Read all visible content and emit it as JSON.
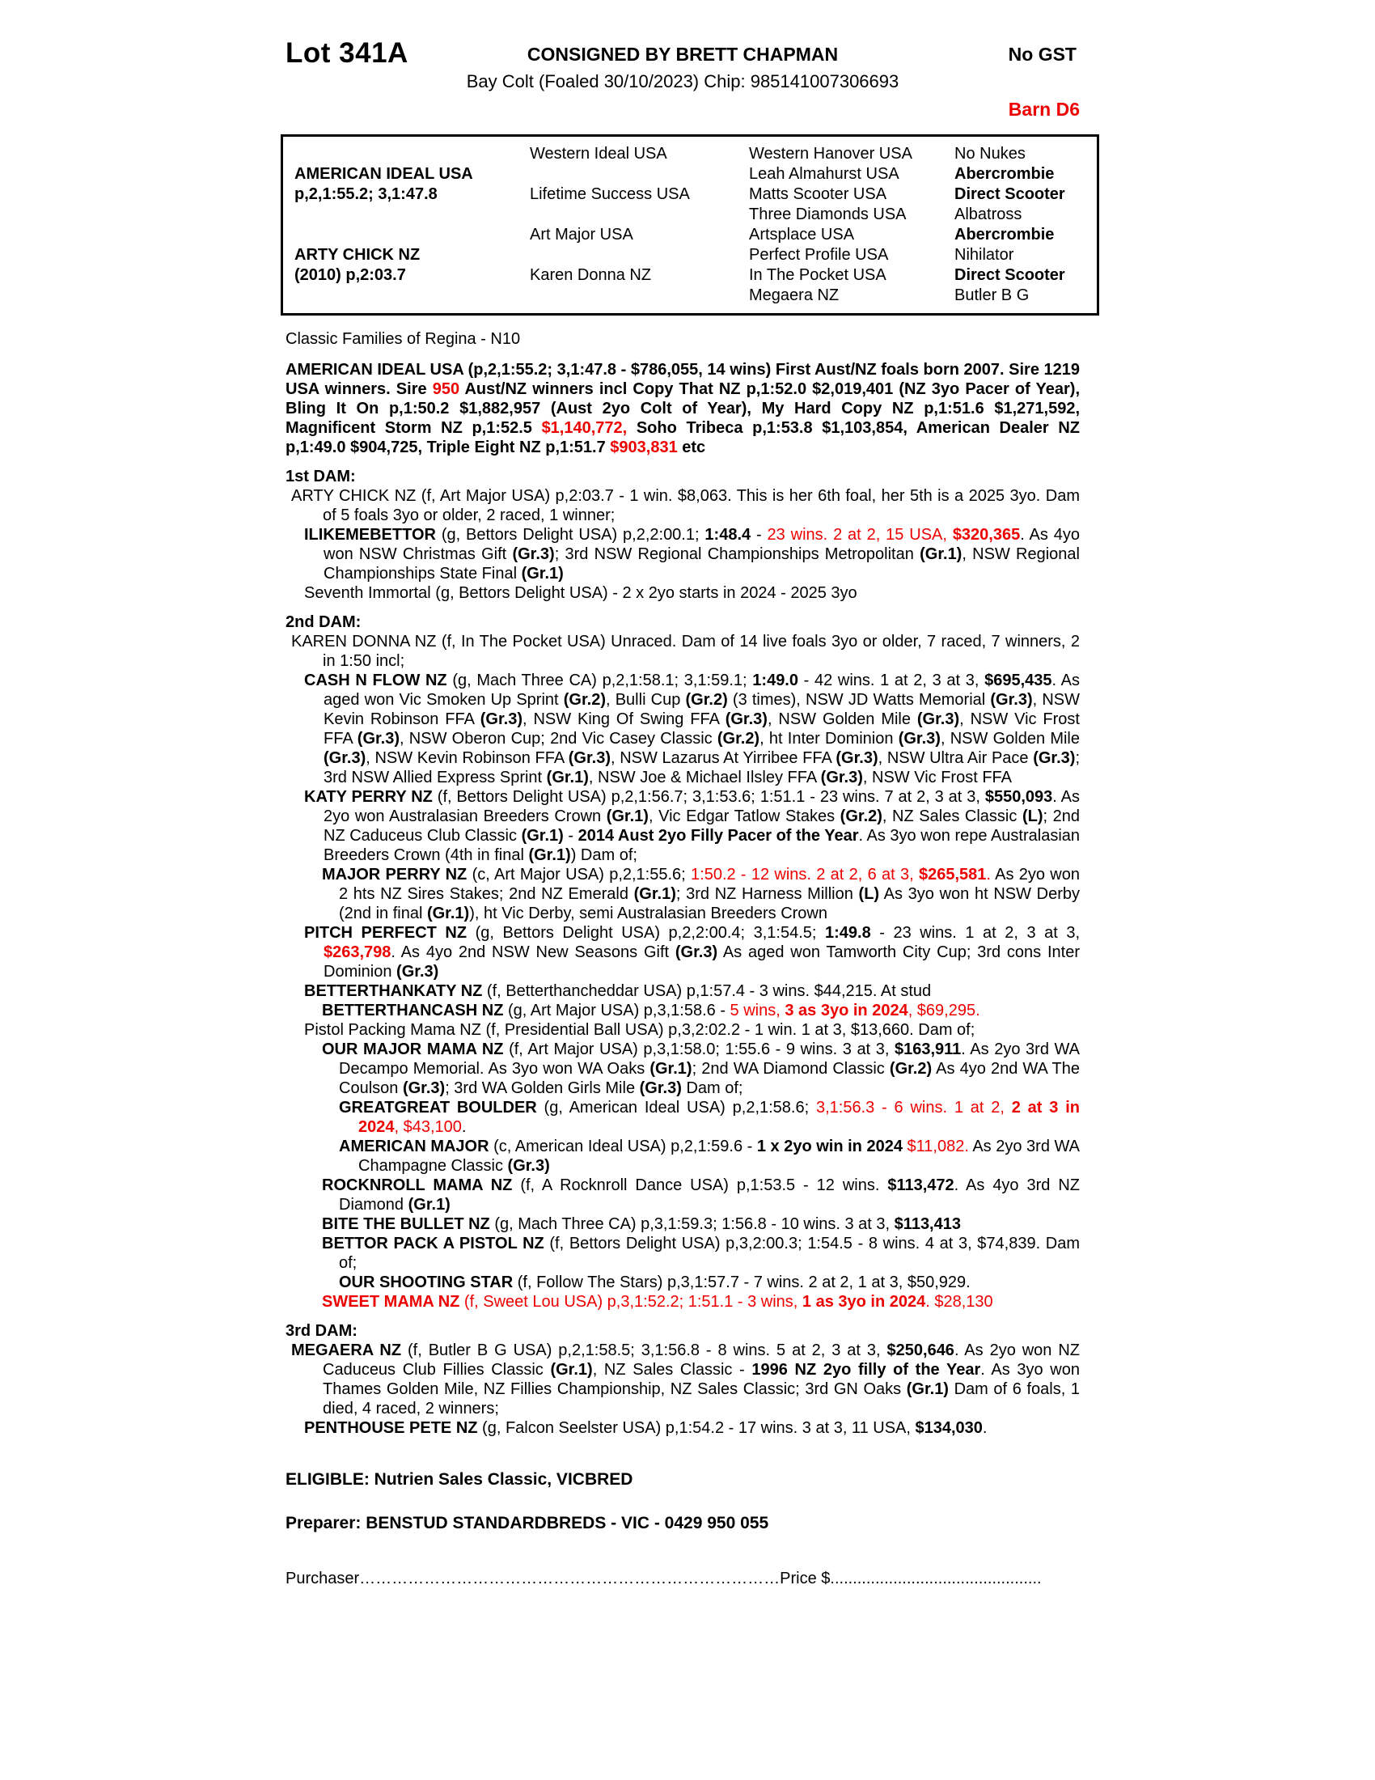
{
  "colors": {
    "red": "#ee0000",
    "black": "#000000"
  },
  "header": {
    "lot": "Lot 341A",
    "consigned": "CONSIGNED BY BRETT CHAPMAN",
    "no_gst": "No GST",
    "subtitle": "Bay Colt (Foaled 30/10/2023) Chip: 985141007306693",
    "barn": "Barn D6"
  },
  "pedigree_table": {
    "sire_dam": [
      {
        "name": "AMERICAN IDEAL USA",
        "record": "p,2,1:55.2; 3,1:47.8"
      },
      {
        "name": "ARTY CHICK NZ",
        "record": "(2010) p,2:03.7"
      }
    ],
    "grandparents": [
      "Western Ideal USA",
      "Lifetime Success USA",
      "Art Major USA",
      "Karen Donna NZ"
    ],
    "great_grandparents": [
      "Western Hanover USA",
      "Leah Almahurst USA",
      "Matts Scooter USA",
      "Three Diamonds USA",
      "Artsplace USA",
      "Perfect Profile USA",
      "In The Pocket USA",
      "Megaera NZ"
    ],
    "gg_grandparents": [
      {
        "text": "No Nukes",
        "bold": false
      },
      {
        "text": "Abercrombie",
        "bold": true
      },
      {
        "text": "Direct Scooter",
        "bold": true
      },
      {
        "text": "Albatross",
        "bold": false
      },
      {
        "text": "Abercrombie",
        "bold": true
      },
      {
        "text": "Nihilator",
        "bold": false
      },
      {
        "text": "Direct Scooter",
        "bold": true
      },
      {
        "text": "Butler B G",
        "bold": false
      }
    ]
  },
  "body": [
    {
      "name": "family-line",
      "cls": "noj",
      "segments": [
        {
          "t": "Classic Families of Regina - N10",
          "s": ""
        }
      ]
    },
    {
      "name": "sire-summary",
      "cls": "mt14",
      "segments": [
        {
          "t": "AMERICAN IDEAL USA (p,2,1:55.2; 3,1:47.8 - $786,055, 14 wins) First Aust/NZ foals born 2007. Sire 1219 USA winners. Sire ",
          "s": "b"
        },
        {
          "t": "950",
          "s": "rb"
        },
        {
          "t": " Aust/NZ winners incl Copy That NZ p,1:52.0 $2,019,401 (NZ 3yo Pacer of Year), Bling It On p,1:50.2 $1,882,957 (Aust 2yo Colt of Year), My Hard Copy NZ p,1:51.6 $1,271,592, Magnificent Storm NZ p,1:52.5 ",
          "s": "b"
        },
        {
          "t": "$1,140,772,",
          "s": "rb"
        },
        {
          "t": " Soho Tribeca p,1:53.8 $1,103,854, American Dealer NZ p,1:49.0 $904,725, Triple Eight NZ p,1:51.7 ",
          "s": "b"
        },
        {
          "t": "$903,831",
          "s": "rb"
        },
        {
          "t": " etc",
          "s": "b"
        }
      ]
    },
    {
      "name": "heading-1st-dam",
      "cls": "heading mt12",
      "segments": [
        {
          "t": "1st DAM:",
          "s": "b"
        }
      ]
    },
    {
      "name": "entry-arty-chick",
      "cls": "dam",
      "segments": [
        {
          "t": "ARTY CHICK NZ (f, Art Major USA) p,2:03.7 - 1 win. $8,063. This is her 6th foal, her 5th is a 2025 3yo. Dam of 5 foals 3yo or older, 2 raced, 1 winner;",
          "s": ""
        }
      ]
    },
    {
      "name": "entry-ilikemebettor",
      "cls": "l1",
      "segments": [
        {
          "t": "ILIKEMEBETTOR",
          "s": "b"
        },
        {
          "t": " (g, Bettors Delight USA) p,2,2:00.1; ",
          "s": ""
        },
        {
          "t": "1:48.4",
          "s": "b"
        },
        {
          "t": " - ",
          "s": ""
        },
        {
          "t": "23 wins. 2 at 2, 15 USA, ",
          "s": "r"
        },
        {
          "t": "$320,365",
          "s": "rb"
        },
        {
          "t": ". As 4yo won NSW Christmas Gift ",
          "s": ""
        },
        {
          "t": "(Gr.3)",
          "s": "b"
        },
        {
          "t": "; 3rd NSW Regional Championships Metropolitan ",
          "s": ""
        },
        {
          "t": "(Gr.1)",
          "s": "b"
        },
        {
          "t": ", NSW Regional Championships State Final ",
          "s": ""
        },
        {
          "t": "(Gr.1)",
          "s": "b"
        }
      ]
    },
    {
      "name": "entry-seventh-immortal",
      "cls": "l1",
      "segments": [
        {
          "t": "Seventh Immortal (g, Bettors Delight USA) - 2 x 2yo starts in 2024 - 2025 3yo",
          "s": ""
        }
      ]
    },
    {
      "name": "heading-2nd-dam",
      "cls": "heading mt12",
      "segments": [
        {
          "t": "2nd DAM:",
          "s": "b"
        }
      ]
    },
    {
      "name": "entry-karen-donna",
      "cls": "dam",
      "segments": [
        {
          "t": "KAREN DONNA NZ (f, In The Pocket USA) Unraced. Dam of 14 live foals 3yo or older, 7 raced, 7 winners, 2 in 1:50 incl;",
          "s": ""
        }
      ]
    },
    {
      "name": "entry-cash-n-flow",
      "cls": "l1",
      "segments": [
        {
          "t": "CASH N FLOW NZ",
          "s": "b"
        },
        {
          "t": " (g, Mach Three CA) p,2,1:58.1; 3,1:59.1; ",
          "s": ""
        },
        {
          "t": "1:49.0",
          "s": "b"
        },
        {
          "t": " - 42 wins. 1 at 2, 3 at 3, ",
          "s": ""
        },
        {
          "t": "$695,435",
          "s": "b"
        },
        {
          "t": ". As aged won Vic Smoken Up Sprint ",
          "s": ""
        },
        {
          "t": "(Gr.2)",
          "s": "b"
        },
        {
          "t": ", Bulli Cup ",
          "s": ""
        },
        {
          "t": "(Gr.2)",
          "s": "b"
        },
        {
          "t": " (3 times), NSW JD Watts Memorial ",
          "s": ""
        },
        {
          "t": "(Gr.3)",
          "s": "b"
        },
        {
          "t": ", NSW Kevin Robinson FFA ",
          "s": ""
        },
        {
          "t": "(Gr.3)",
          "s": "b"
        },
        {
          "t": ", NSW King Of Swing FFA ",
          "s": ""
        },
        {
          "t": "(Gr.3)",
          "s": "b"
        },
        {
          "t": ", NSW Golden Mile ",
          "s": ""
        },
        {
          "t": "(Gr.3)",
          "s": "b"
        },
        {
          "t": ", NSW Vic Frost FFA ",
          "s": ""
        },
        {
          "t": "(Gr.3)",
          "s": "b"
        },
        {
          "t": ", NSW Oberon Cup; 2nd Vic Casey Classic ",
          "s": ""
        },
        {
          "t": "(Gr.2)",
          "s": "b"
        },
        {
          "t": ", ht Inter Dominion ",
          "s": ""
        },
        {
          "t": "(Gr.3)",
          "s": "b"
        },
        {
          "t": ", NSW Golden Mile ",
          "s": ""
        },
        {
          "t": "(Gr.3)",
          "s": "b"
        },
        {
          "t": ", NSW Kevin Robinson FFA ",
          "s": ""
        },
        {
          "t": "(Gr.3)",
          "s": "b"
        },
        {
          "t": ", NSW Lazarus At Yirribee FFA ",
          "s": ""
        },
        {
          "t": "(Gr.3)",
          "s": "b"
        },
        {
          "t": ", NSW Ultra Air Pace ",
          "s": ""
        },
        {
          "t": "(Gr.3)",
          "s": "b"
        },
        {
          "t": "; 3rd NSW Allied Express Sprint ",
          "s": ""
        },
        {
          "t": "(Gr.1)",
          "s": "b"
        },
        {
          "t": ", NSW Joe & Michael Ilsley FFA ",
          "s": ""
        },
        {
          "t": "(Gr.3)",
          "s": "b"
        },
        {
          "t": ", NSW Vic Frost FFA",
          "s": ""
        }
      ]
    },
    {
      "name": "entry-katy-perry",
      "cls": "l1",
      "segments": [
        {
          "t": "KATY PERRY NZ",
          "s": "b"
        },
        {
          "t": " (f, Bettors Delight USA) p,2,1:56.7; 3,1:53.6; 1:51.1 - 23 wins. 7 at 2, 3 at 3, ",
          "s": ""
        },
        {
          "t": "$550,093",
          "s": "b"
        },
        {
          "t": ". As 2yo won Australasian Breeders Crown ",
          "s": ""
        },
        {
          "t": "(Gr.1)",
          "s": "b"
        },
        {
          "t": ", Vic Edgar Tatlow Stakes ",
          "s": ""
        },
        {
          "t": "(Gr.2)",
          "s": "b"
        },
        {
          "t": ", NZ Sales Classic ",
          "s": ""
        },
        {
          "t": "(L)",
          "s": "b"
        },
        {
          "t": "; 2nd NZ Caduceus Club Classic ",
          "s": ""
        },
        {
          "t": "(Gr.1)",
          "s": "b"
        },
        {
          "t": " - ",
          "s": ""
        },
        {
          "t": "2014 Aust 2yo Filly Pacer of the Year",
          "s": "b"
        },
        {
          "t": ". As 3yo won repe Australasian Breeders Crown (4th in final ",
          "s": ""
        },
        {
          "t": "(Gr.1)",
          "s": "b"
        },
        {
          "t": ") Dam of;",
          "s": ""
        }
      ]
    },
    {
      "name": "entry-major-perry",
      "cls": "l2",
      "segments": [
        {
          "t": "MAJOR PERRY NZ",
          "s": "b"
        },
        {
          "t": " (c, Art Major USA) p,2,1:55.6; ",
          "s": ""
        },
        {
          "t": "1:50.2 - 12 wins. 2 at 2, 6 at 3, ",
          "s": "r"
        },
        {
          "t": "$265,581",
          "s": "rb"
        },
        {
          "t": ".",
          "s": "r"
        },
        {
          "t": " As 2yo won 2 hts NZ Sires Stakes; 2nd NZ Emerald ",
          "s": ""
        },
        {
          "t": "(Gr.1)",
          "s": "b"
        },
        {
          "t": "; 3rd NZ Harness Million ",
          "s": ""
        },
        {
          "t": "(L)",
          "s": "b"
        },
        {
          "t": " As 3yo won ht NSW Derby (2nd in final ",
          "s": ""
        },
        {
          "t": "(Gr.1)",
          "s": "b"
        },
        {
          "t": "), ht Vic Derby, semi Australasian Breeders Crown",
          "s": ""
        }
      ]
    },
    {
      "name": "entry-pitch-perfect",
      "cls": "l1",
      "segments": [
        {
          "t": "PITCH PERFECT NZ",
          "s": "b"
        },
        {
          "t": " (g, Bettors Delight USA) p,2,2:00.4; 3,1:54.5; ",
          "s": ""
        },
        {
          "t": "1:49.8",
          "s": "b"
        },
        {
          "t": " - 23 wins. 1 at 2, 3 at 3, ",
          "s": ""
        },
        {
          "t": "$263,798",
          "s": "rb"
        },
        {
          "t": ". As 4yo 2nd NSW New Seasons Gift ",
          "s": ""
        },
        {
          "t": "(Gr.3)",
          "s": "b"
        },
        {
          "t": " As aged won Tamworth City Cup; 3rd cons Inter Dominion ",
          "s": ""
        },
        {
          "t": "(Gr.3)",
          "s": "b"
        }
      ]
    },
    {
      "name": "entry-betterthankaty",
      "cls": "l1",
      "segments": [
        {
          "t": "BETTERTHANKATY NZ",
          "s": "b"
        },
        {
          "t": " (f, Betterthancheddar USA) p,1:57.4 - 3 wins. $44,215. At stud",
          "s": ""
        }
      ]
    },
    {
      "name": "entry-betterthancash",
      "cls": "l2",
      "segments": [
        {
          "t": "BETTERTHANCASH NZ",
          "s": "b"
        },
        {
          "t": " (g, Art Major USA) p,3,1:58.6 - ",
          "s": ""
        },
        {
          "t": "5 wins, ",
          "s": "r"
        },
        {
          "t": "3 as 3yo in 2024",
          "s": "rb"
        },
        {
          "t": ", $69,295.",
          "s": "r"
        }
      ]
    },
    {
      "name": "entry-pistol-packing-mama",
      "cls": "l1",
      "segments": [
        {
          "t": "Pistol Packing Mama NZ (f, Presidential Ball USA) p,3,2:02.2 - 1 win. 1 at 3, $13,660. Dam of;",
          "s": ""
        }
      ]
    },
    {
      "name": "entry-our-major-mama",
      "cls": "l2",
      "segments": [
        {
          "t": "OUR MAJOR MAMA NZ",
          "s": "b"
        },
        {
          "t": " (f, Art Major USA) p,3,1:58.0; 1:55.6 - 9 wins. 3 at 3, ",
          "s": ""
        },
        {
          "t": "$163,911",
          "s": "b"
        },
        {
          "t": ". As 2yo 3rd WA Decampo Memorial. As 3yo won WA Oaks ",
          "s": ""
        },
        {
          "t": "(Gr.1)",
          "s": "b"
        },
        {
          "t": "; 2nd WA Diamond Classic ",
          "s": ""
        },
        {
          "t": "(Gr.2)",
          "s": "b"
        },
        {
          "t": " As 4yo 2nd WA The Coulson ",
          "s": ""
        },
        {
          "t": "(Gr.3)",
          "s": "b"
        },
        {
          "t": "; 3rd WA Golden Girls Mile ",
          "s": ""
        },
        {
          "t": "(Gr.3)",
          "s": "b"
        },
        {
          "t": " Dam of;",
          "s": ""
        }
      ]
    },
    {
      "name": "entry-greatgreat-boulder",
      "cls": "l3",
      "segments": [
        {
          "t": "GREATGREAT BOULDER",
          "s": "b"
        },
        {
          "t": " (g, American Ideal USA) p,2,1:58.6; ",
          "s": ""
        },
        {
          "t": "3,1:56.3 - 6 wins. 1 at 2, ",
          "s": "r"
        },
        {
          "t": "2 at 3 in 2024",
          "s": "rb"
        },
        {
          "t": ", $43,100",
          "s": "r"
        },
        {
          "t": ".",
          "s": ""
        }
      ]
    },
    {
      "name": "entry-american-major",
      "cls": "l3",
      "segments": [
        {
          "t": "AMERICAN MAJOR",
          "s": "b"
        },
        {
          "t": " (c, American Ideal USA) p,2,1:59.6 - ",
          "s": ""
        },
        {
          "t": "1 x 2yo win in 2024",
          "s": "b"
        },
        {
          "t": " ",
          "s": ""
        },
        {
          "t": "$11,082.",
          "s": "r"
        },
        {
          "t": " As 2yo 3rd WA Champagne Classic ",
          "s": ""
        },
        {
          "t": "(Gr.3)",
          "s": "b"
        }
      ]
    },
    {
      "name": "entry-rocknroll-mama",
      "cls": "l2",
      "segments": [
        {
          "t": "ROCKNROLL MAMA NZ",
          "s": "b"
        },
        {
          "t": " (f, A Rocknroll Dance USA) p,1:53.5 - 12 wins. ",
          "s": ""
        },
        {
          "t": "$113,472",
          "s": "b"
        },
        {
          "t": ". As 4yo 3rd NZ Diamond ",
          "s": ""
        },
        {
          "t": "(Gr.1)",
          "s": "b"
        }
      ]
    },
    {
      "name": "entry-bite-the-bullet",
      "cls": "l2",
      "segments": [
        {
          "t": "BITE THE BULLET NZ",
          "s": "b"
        },
        {
          "t": " (g, Mach Three CA) p,3,1:59.3; 1:56.8 - 10 wins. 3 at 3, ",
          "s": ""
        },
        {
          "t": "$113,413",
          "s": "b"
        }
      ]
    },
    {
      "name": "entry-bettor-pack-a-pistol",
      "cls": "l2",
      "segments": [
        {
          "t": "BETTOR PACK A PISTOL NZ",
          "s": "b"
        },
        {
          "t": " (f, Bettors Delight USA) p,3,2:00.3; 1:54.5 - 8 wins. 4 at 3, $74,839. Dam of;",
          "s": ""
        }
      ]
    },
    {
      "name": "entry-our-shooting-star",
      "cls": "l3",
      "segments": [
        {
          "t": "OUR SHOOTING STAR",
          "s": "b"
        },
        {
          "t": " (f, Follow The Stars) p,3,1:57.7 - 7 wins. 2 at 2, 1 at 3, $50,929.",
          "s": ""
        }
      ]
    },
    {
      "name": "entry-sweet-mama",
      "cls": "l2",
      "segments": [
        {
          "t": "SWEET MAMA NZ",
          "s": "rb"
        },
        {
          "t": " (f, Sweet Lou USA) p,3,1:52.2; 1:51.1 - 3 wins, ",
          "s": "r"
        },
        {
          "t": "1 as 3yo in 2024",
          "s": "rb"
        },
        {
          "t": ". $28,130",
          "s": "r"
        }
      ]
    },
    {
      "name": "heading-3rd-dam",
      "cls": "heading mt12",
      "segments": [
        {
          "t": "3rd DAM:",
          "s": "b"
        }
      ]
    },
    {
      "name": "entry-megaera",
      "cls": "dam",
      "segments": [
        {
          "t": "MEGAERA NZ",
          "s": "b"
        },
        {
          "t": " (f, Butler B G USA) p,2,1:58.5; 3,1:56.8 - 8 wins. 5 at 2, 3 at 3, ",
          "s": ""
        },
        {
          "t": "$250,646",
          "s": "b"
        },
        {
          "t": ". As 2yo won NZ Caduceus Club Fillies Classic ",
          "s": ""
        },
        {
          "t": "(Gr.1)",
          "s": "b"
        },
        {
          "t": ", NZ Sales Classic - ",
          "s": ""
        },
        {
          "t": "1996 NZ 2yo filly of the Year",
          "s": "b"
        },
        {
          "t": ". As 3yo won Thames Golden Mile, NZ Fillies Championship, NZ Sales Classic; 3rd GN Oaks ",
          "s": ""
        },
        {
          "t": "(Gr.1)",
          "s": "b"
        },
        {
          "t": " Dam of 6 foals, 1 died, 4 raced, 2 winners;",
          "s": ""
        }
      ]
    },
    {
      "name": "entry-penthouse-pete",
      "cls": "l1",
      "segments": [
        {
          "t": "PENTHOUSE PETE NZ",
          "s": "b"
        },
        {
          "t": " (g, Falcon Seelster USA) p,1:54.2 - 17 wins. 3 at 3, 11 USA, ",
          "s": ""
        },
        {
          "t": "$134,030",
          "s": "b"
        },
        {
          "t": ".",
          "s": ""
        }
      ]
    },
    {
      "name": "eligible-line",
      "cls": "noj big mt40",
      "segments": [
        {
          "t": "ELIGIBLE: Nutrien Sales Classic, VICBRED",
          "s": "b"
        }
      ]
    },
    {
      "name": "preparer-line",
      "cls": "noj big mt30",
      "segments": [
        {
          "t": "Preparer: BENSTUD STANDARDBREDS - VIC - 0429 950 055",
          "s": "b"
        }
      ]
    },
    {
      "name": "purchaser-price-line",
      "cls": "noj mt44",
      "segments": [
        {
          "t": "Purchaser……………………………………………………………………Price $...............................................",
          "s": ""
        }
      ]
    }
  ]
}
